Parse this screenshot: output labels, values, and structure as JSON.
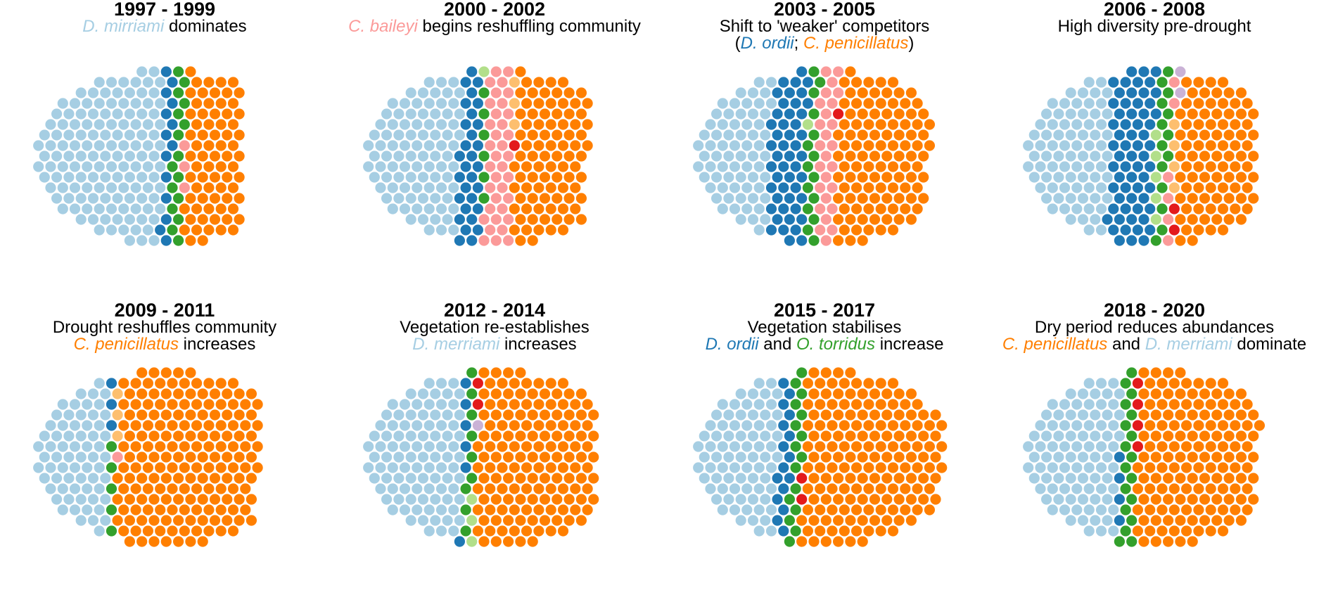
{
  "colors": {
    "D. merriami": "#a6cee3",
    "D. ordii": "#1f78b4",
    "O. torridus": "#33a02c",
    "C. penicillatus": "#ff7f00",
    "C. baileyi": "#fb9a99",
    "light-green": "#b2df8a",
    "light-orange": "#fdbf6f",
    "red": "#e31a1c",
    "lavender": "#cab2d6"
  },
  "chart_data": {
    "type": "circle-packing",
    "panels": [
      {
        "title": "1997 - 1999",
        "subtitle": [
          [
            {
              "text": "D. mirriami",
              "species": "D. merriami"
            },
            {
              "text": " dominates"
            }
          ]
        ],
        "counts": [
          [
            "D. merriami",
            138
          ],
          [
            "D. ordii",
            14
          ],
          [
            "O. torridus",
            16
          ],
          [
            "C. baileyi",
            3
          ],
          [
            "C. penicillatus",
            72
          ]
        ]
      },
      {
        "title": "2000 - 2002",
        "subtitle": [
          [
            {
              "text": "C. baileyi",
              "species": "C. baileyi"
            },
            {
              "text": " begins reshuffling community"
            }
          ]
        ],
        "counts": [
          [
            "D. merriami",
            92
          ],
          [
            "D. ordii",
            30
          ],
          [
            "light-green",
            1
          ],
          [
            "O. torridus",
            6
          ],
          [
            "C. baileyi",
            36
          ],
          [
            "light-orange",
            3
          ],
          [
            "red",
            1
          ],
          [
            "C. penicillatus",
            90
          ]
        ]
      },
      {
        "title": "2003 - 2005",
        "subtitle": [
          [
            {
              "text": "Shift to 'weaker' competitors"
            }
          ],
          [
            {
              "text": "("
            },
            {
              "text": "D. ordii",
              "species": "D. ordii"
            },
            {
              "text": "; "
            },
            {
              "text": "C. penicillatus",
              "species": "C. penicillatus"
            },
            {
              "text": ")"
            }
          ]
        ],
        "counts": [
          [
            "D. merriami",
            68
          ],
          [
            "D. ordii",
            48
          ],
          [
            "light-green",
            1
          ],
          [
            "O. torridus",
            15
          ],
          [
            "C. baileyi",
            26
          ],
          [
            "red",
            1
          ],
          [
            "C. penicillatus",
            110
          ]
        ]
      },
      {
        "title": "2006 - 2008",
        "subtitle": [
          [
            {
              "text": "High diversity pre-drought"
            }
          ]
        ],
        "counts": [
          [
            "D. merriami",
            80
          ],
          [
            "D. ordii",
            62
          ],
          [
            "light-green",
            5
          ],
          [
            "O. torridus",
            14
          ],
          [
            "C. baileyi",
            6
          ],
          [
            "light-orange",
            4
          ],
          [
            "red",
            2
          ],
          [
            "lavender",
            2
          ],
          [
            "C. penicillatus",
            92
          ]
        ]
      },
      {
        "title": "2009 - 2011",
        "subtitle": [
          [
            {
              "text": "Drought reshuffles community"
            }
          ],
          [
            {
              "text": "C. penicillatus",
              "species": "C. penicillatus"
            },
            {
              "text": " increases"
            }
          ]
        ],
        "counts": [
          [
            "D. merriami",
            66
          ],
          [
            "D. ordii",
            3
          ],
          [
            "O. torridus",
            5
          ],
          [
            "light-orange",
            3
          ],
          [
            "C. baileyi",
            1
          ],
          [
            "C. penicillatus",
            182
          ]
        ]
      },
      {
        "title": "2012 - 2014",
        "subtitle": [
          [
            {
              "text": "Vegetation re-establishes"
            }
          ],
          [
            {
              "text": "D. merriami",
              "species": "D. merriami"
            },
            {
              "text": " increases"
            }
          ]
        ],
        "counts": [
          [
            "D. merriami",
            96
          ],
          [
            "D. ordii",
            6
          ],
          [
            "O. torridus",
            9
          ],
          [
            "light-green",
            3
          ],
          [
            "red",
            2
          ],
          [
            "lavender",
            1
          ],
          [
            "C. penicillatus",
            150
          ]
        ]
      },
      {
        "title": "2015 - 2017",
        "subtitle": [
          [
            {
              "text": "Vegetation stabilises"
            }
          ],
          [
            {
              "text": "D. ordii",
              "species": "D. ordii"
            },
            {
              "text": " and "
            },
            {
              "text": "O. torridus",
              "species": "O. torridus"
            },
            {
              "text": " increase"
            }
          ]
        ],
        "counts": [
          [
            "D. merriami",
            78
          ],
          [
            "D. ordii",
            16
          ],
          [
            "O. torridus",
            16
          ],
          [
            "red",
            2
          ],
          [
            "C. penicillatus",
            168
          ]
        ]
      },
      {
        "title": "2018 - 2020",
        "subtitle": [
          [
            {
              "text": "Dry period reduces abundances"
            }
          ],
          [
            {
              "text": "C. penicillatus",
              "species": "C. penicillatus"
            },
            {
              "text": " and "
            },
            {
              "text": "D. merriami",
              "species": "D. merriami"
            },
            {
              "text": " dominate"
            }
          ]
        ],
        "counts": [
          [
            "D. merriami",
            92
          ],
          [
            "D. ordii",
            4
          ],
          [
            "O. torridus",
            18
          ],
          [
            "red",
            4
          ],
          [
            "C. penicillatus",
            150
          ]
        ]
      }
    ]
  }
}
